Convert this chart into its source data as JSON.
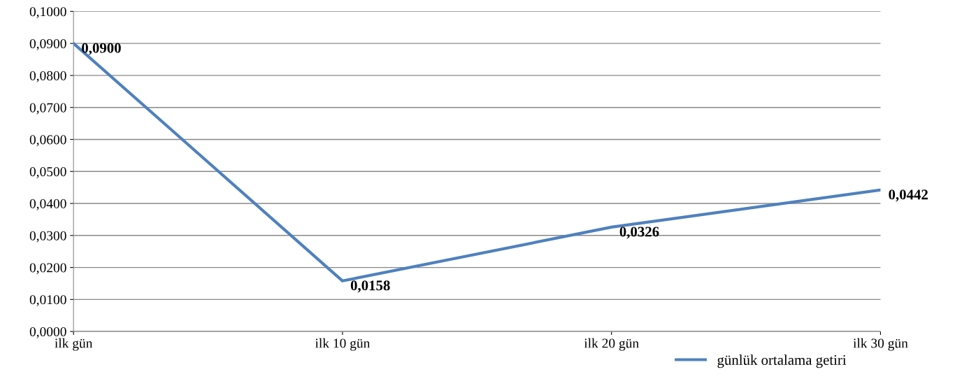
{
  "chart_data": {
    "type": "line",
    "categories": [
      "ilk gün",
      "ilk 10 gün",
      "ilk 20 gün",
      "ilk 30 gün"
    ],
    "series": [
      {
        "name": "günlük ortalama getiri",
        "color": "#4f81bd",
        "values": [
          0.09,
          0.0158,
          0.0326,
          0.0442
        ],
        "value_labels": [
          "0,0900",
          "0,0158",
          "0,0326",
          "0,0442"
        ]
      }
    ],
    "ylim": [
      0,
      0.1
    ],
    "yticks": [
      {
        "value": 0,
        "label": "0,0000"
      },
      {
        "value": 0.01,
        "label": "0,0100"
      },
      {
        "value": 0.02,
        "label": "0,0200"
      },
      {
        "value": 0.03,
        "label": "0,0300"
      },
      {
        "value": 0.04,
        "label": "0,0400"
      },
      {
        "value": 0.05,
        "label": "0,0500"
      },
      {
        "value": 0.06,
        "label": "0,0600"
      },
      {
        "value": 0.07,
        "label": "0,0700"
      },
      {
        "value": 0.08,
        "label": "0,0800"
      },
      {
        "value": 0.09,
        "label": "0,0900"
      },
      {
        "value": 0.1,
        "label": "0,1000"
      }
    ],
    "grid": "y",
    "legend": "bottom right",
    "marker": "none",
    "line_style": "solid"
  }
}
